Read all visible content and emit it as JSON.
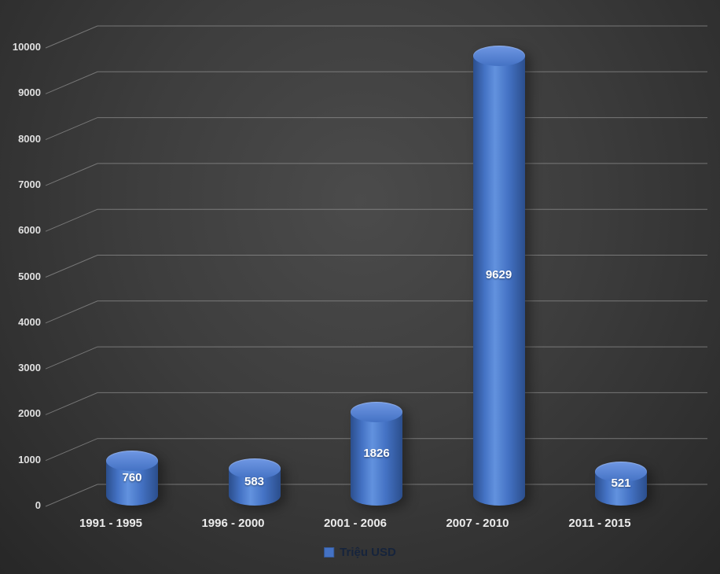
{
  "chart_data": {
    "type": "bar",
    "subtype": "cylinder-3d",
    "categories": [
      "1991 - 1995",
      "1996 - 2000",
      "2001 - 2006",
      "2007 - 2010",
      "2011 - 2015"
    ],
    "values": [
      760,
      583,
      1826,
      9629,
      521
    ],
    "series_name": "Triệu USD",
    "title": "",
    "xlabel": "",
    "ylabel": "",
    "ylim": [
      0,
      10000
    ],
    "ytick_step": 1000,
    "yticks": [
      0,
      1000,
      2000,
      3000,
      4000,
      5000,
      6000,
      7000,
      8000,
      9000,
      10000
    ],
    "grid": true,
    "legend_position": "bottom",
    "colors": {
      "bar": "#4472C4",
      "bar_highlight": "#6292DE",
      "bar_shadow": "#2B4E8C",
      "bar_top": "#6F97E3",
      "gridline": "#9a9a9a",
      "axis_text": "#e0e0e0",
      "value_label_text": "#ffffff",
      "legend_text": "#16243c",
      "background_center": "#4b4b4b",
      "background_edge": "#272727"
    }
  },
  "legend": {
    "label": "Triệu USD"
  }
}
